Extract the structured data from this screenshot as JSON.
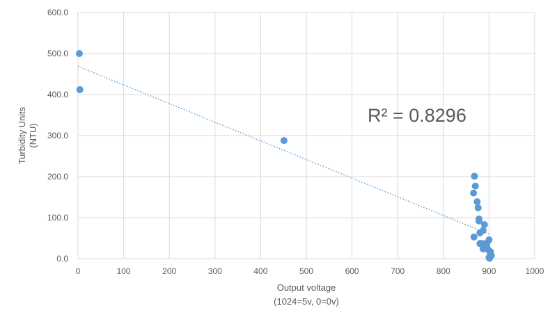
{
  "chart_data": {
    "type": "scatter",
    "title": "",
    "xlabel_lines": [
      "Output voltage",
      "(1024=5v, 0=0v)"
    ],
    "ylabel_lines": [
      "Turbidity Units",
      "(NTU)"
    ],
    "xlim": [
      0,
      1000
    ],
    "ylim": [
      0,
      600
    ],
    "x_ticks": [
      "0",
      "100",
      "200",
      "300",
      "400",
      "500",
      "600",
      "700",
      "800",
      "900",
      "1000"
    ],
    "y_ticks": [
      "0.0",
      "100.0",
      "200.0",
      "300.0",
      "400.0",
      "500.0",
      "600.0"
    ],
    "grid": true,
    "point_color": "#5B9BD5",
    "trendline": {
      "type": "linear",
      "x": [
        0,
        900
      ],
      "y": [
        469,
        60
      ],
      "style": "dotted",
      "color": "#5B9BD5"
    },
    "r_squared_label": "R² = 0.8296",
    "series": [
      {
        "x": [
          3,
          4,
          451,
          868,
          870,
          866,
          874,
          876,
          878,
          878,
          880,
          887,
          890,
          885,
          880,
          867,
          895,
          900,
          893,
          890,
          887,
          895,
          898,
          903,
          903,
          905,
          900,
          901
        ],
        "y": [
          500,
          412,
          288,
          201,
          177,
          160,
          139,
          124,
          97,
          92,
          63,
          69,
          83,
          37,
          37,
          53,
          38,
          46,
          27,
          25,
          24,
          32,
          22,
          17,
          13,
          8,
          3,
          1
        ]
      }
    ]
  }
}
